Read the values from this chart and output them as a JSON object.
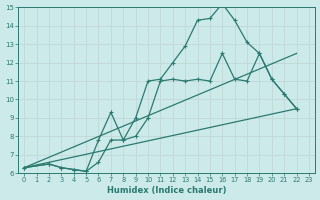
{
  "xlabel": "Humidex (Indice chaleur)",
  "ylabel": "",
  "bg_color": "#cdeaea",
  "grid_color": "#c0d8d8",
  "line_color": "#2a7a70",
  "xlim": [
    -0.5,
    23.5
  ],
  "ylim": [
    6,
    15
  ],
  "xticks": [
    0,
    1,
    2,
    3,
    4,
    5,
    6,
    7,
    8,
    9,
    10,
    11,
    12,
    13,
    14,
    15,
    16,
    17,
    18,
    19,
    20,
    21,
    22,
    23
  ],
  "yticks": [
    6,
    7,
    8,
    9,
    10,
    11,
    12,
    13,
    14,
    15
  ],
  "series": [
    {
      "x": [
        0,
        22
      ],
      "y": [
        6.3,
        9.5
      ],
      "marker": false,
      "lw": 0.9
    },
    {
      "x": [
        0,
        22
      ],
      "y": [
        6.3,
        12.5
      ],
      "marker": false,
      "lw": 0.9
    },
    {
      "x": [
        0,
        2,
        3,
        4,
        5,
        6,
        7,
        8,
        9,
        10,
        11,
        12,
        13,
        14,
        15,
        16,
        17,
        18,
        19,
        20,
        21,
        22
      ],
      "y": [
        6.3,
        6.5,
        6.3,
        6.2,
        6.1,
        6.6,
        7.8,
        7.8,
        8.0,
        9.0,
        11.0,
        11.1,
        11.0,
        11.1,
        11.0,
        12.5,
        11.1,
        11.0,
        12.5,
        11.1,
        10.3,
        9.5
      ],
      "marker": true,
      "lw": 0.9
    },
    {
      "x": [
        0,
        2,
        3,
        4,
        5,
        6,
        7,
        8,
        9,
        10,
        11,
        12,
        13,
        14,
        15,
        16,
        17,
        18,
        19,
        20,
        21,
        22
      ],
      "y": [
        6.3,
        6.5,
        6.3,
        6.2,
        6.1,
        7.8,
        9.3,
        7.8,
        9.0,
        11.0,
        11.1,
        12.0,
        12.9,
        14.3,
        14.4,
        15.2,
        14.3,
        13.1,
        12.5,
        11.1,
        10.3,
        9.5
      ],
      "marker": true,
      "lw": 0.9
    }
  ]
}
